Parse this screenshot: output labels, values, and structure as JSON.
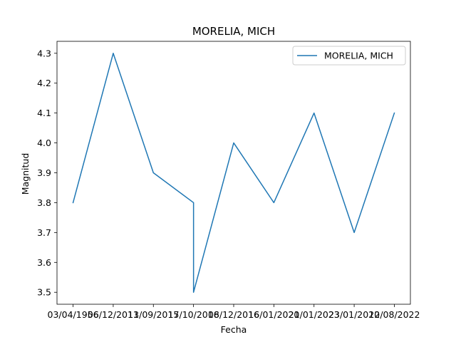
{
  "chart_data": {
    "type": "line",
    "title": "MORELIA, MICH",
    "xlabel": "Fecha",
    "ylabel": "Magnitud",
    "x_tick_labels": [
      "03/04/1956",
      "06/12/2011",
      "13/09/2015",
      "17/10/2016",
      "08/12/2016",
      "16/01/2020",
      "21/01/2023",
      "23/01/2020",
      "12/08/2022"
    ],
    "ylim": [
      3.46,
      4.34
    ],
    "y_ticks": [
      3.5,
      3.6,
      3.7,
      3.8,
      3.9,
      4.0,
      4.1,
      4.2,
      4.3
    ],
    "y_tick_labels": [
      "3.5",
      "3.6",
      "3.7",
      "3.8",
      "3.9",
      "4.0",
      "4.1",
      "4.2",
      "4.3"
    ],
    "grid": false,
    "legend_position": "top-right",
    "series": [
      {
        "name": "MORELIA, MICH",
        "color": "#1f77b4",
        "points": [
          {
            "x": 0,
            "y": 3.8
          },
          {
            "x": 1,
            "y": 4.3
          },
          {
            "x": 2,
            "y": 3.9
          },
          {
            "x": 3,
            "y": 3.8
          },
          {
            "x": 3,
            "y": 3.5
          },
          {
            "x": 4,
            "y": 4.0
          },
          {
            "x": 5,
            "y": 3.8
          },
          {
            "x": 6,
            "y": 4.1
          },
          {
            "x": 7,
            "y": 3.7
          },
          {
            "x": 8,
            "y": 4.1
          }
        ]
      }
    ]
  }
}
